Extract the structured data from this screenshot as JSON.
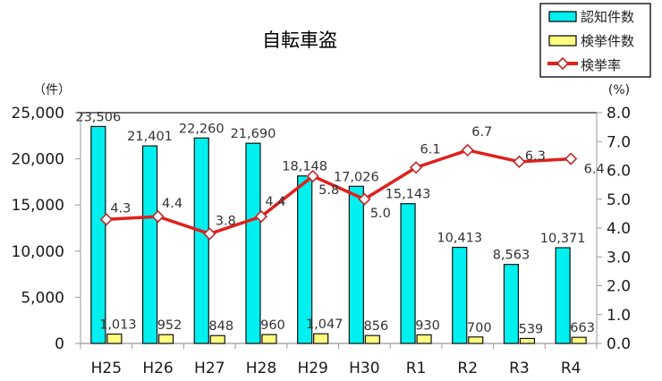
{
  "chart_data": {
    "type": "bar+line",
    "title": "自転車盗",
    "categories": [
      "H25",
      "H26",
      "H27",
      "H28",
      "H29",
      "H30",
      "R1",
      "R2",
      "R3",
      "R4"
    ],
    "series": [
      {
        "name": "認知件数",
        "type": "bar",
        "axis": "left",
        "color": "#00f0f0",
        "values": [
          23506,
          21401,
          22260,
          21690,
          18148,
          17026,
          15143,
          10413,
          8563,
          10371
        ],
        "labels": [
          "23,506",
          "21,401",
          "22,260",
          "21,690",
          "18,148",
          "17,026",
          "15,143",
          "10,413",
          "8,563",
          "10,371"
        ]
      },
      {
        "name": "検挙件数",
        "type": "bar",
        "axis": "left",
        "color": "#ffff80",
        "values": [
          1013,
          952,
          848,
          960,
          1047,
          856,
          930,
          700,
          539,
          663
        ],
        "labels": [
          "1,013",
          "952",
          "848",
          "960",
          "1,047",
          "856",
          "930",
          "700",
          "539",
          "663"
        ]
      },
      {
        "name": "検挙率",
        "type": "line",
        "axis": "right",
        "color": "#e0201c",
        "marker": "diamond-open",
        "values": [
          4.3,
          4.4,
          3.8,
          4.4,
          5.8,
          5.0,
          6.1,
          6.7,
          6.3,
          6.4
        ],
        "labels": [
          "4.3",
          "4.4",
          "3.8",
          "4.4",
          "5.8",
          "5.0",
          "6.1",
          "6.7",
          "6.3",
          "6.4"
        ]
      }
    ],
    "y_left": {
      "label": "（件）",
      "range": [
        0,
        25000
      ],
      "ticks": [
        "0",
        "5,000",
        "10,000",
        "15,000",
        "20,000",
        "25,000"
      ]
    },
    "y_right": {
      "label": "(%)",
      "range": [
        0.0,
        8.0
      ],
      "ticks": [
        "0.0",
        "1.0",
        "2.0",
        "3.0",
        "4.0",
        "5.0",
        "6.0",
        "7.0",
        "8.0"
      ]
    },
    "xlabel": "",
    "grid": false,
    "legend": {
      "position": "top-right",
      "entries": [
        "認知件数",
        "検挙件数",
        "検挙率"
      ]
    }
  }
}
